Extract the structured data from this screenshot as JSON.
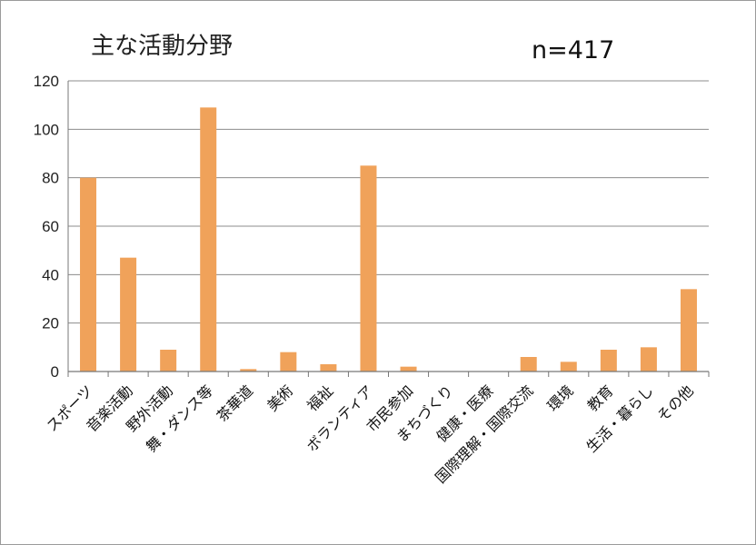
{
  "chart_data": {
    "type": "bar",
    "title": "主な活動分野",
    "annotation": "n=417",
    "categories": [
      "スポーツ",
      "音楽活動",
      "野外活動",
      "舞・ダンス等",
      "茶華道",
      "美術",
      "福祉",
      "ボランティア",
      "市民参加",
      "まちづくり",
      "健康・医療",
      "国際理解・国際交流",
      "環境",
      "教育",
      "生活・暮らし",
      "その他"
    ],
    "values": [
      80,
      47,
      9,
      109,
      1,
      8,
      3,
      85,
      2,
      0,
      0,
      6,
      4,
      9,
      10,
      34
    ],
    "xlabel": "",
    "ylabel": "",
    "ylim": [
      0,
      120
    ],
    "yticks": [
      "0",
      "20",
      "40",
      "60",
      "80",
      "100",
      "120"
    ],
    "grid": true,
    "legend": "none",
    "colors": {
      "bar": "#f0a25a",
      "grid": "#8c8c8c",
      "axis": "#777777"
    }
  }
}
